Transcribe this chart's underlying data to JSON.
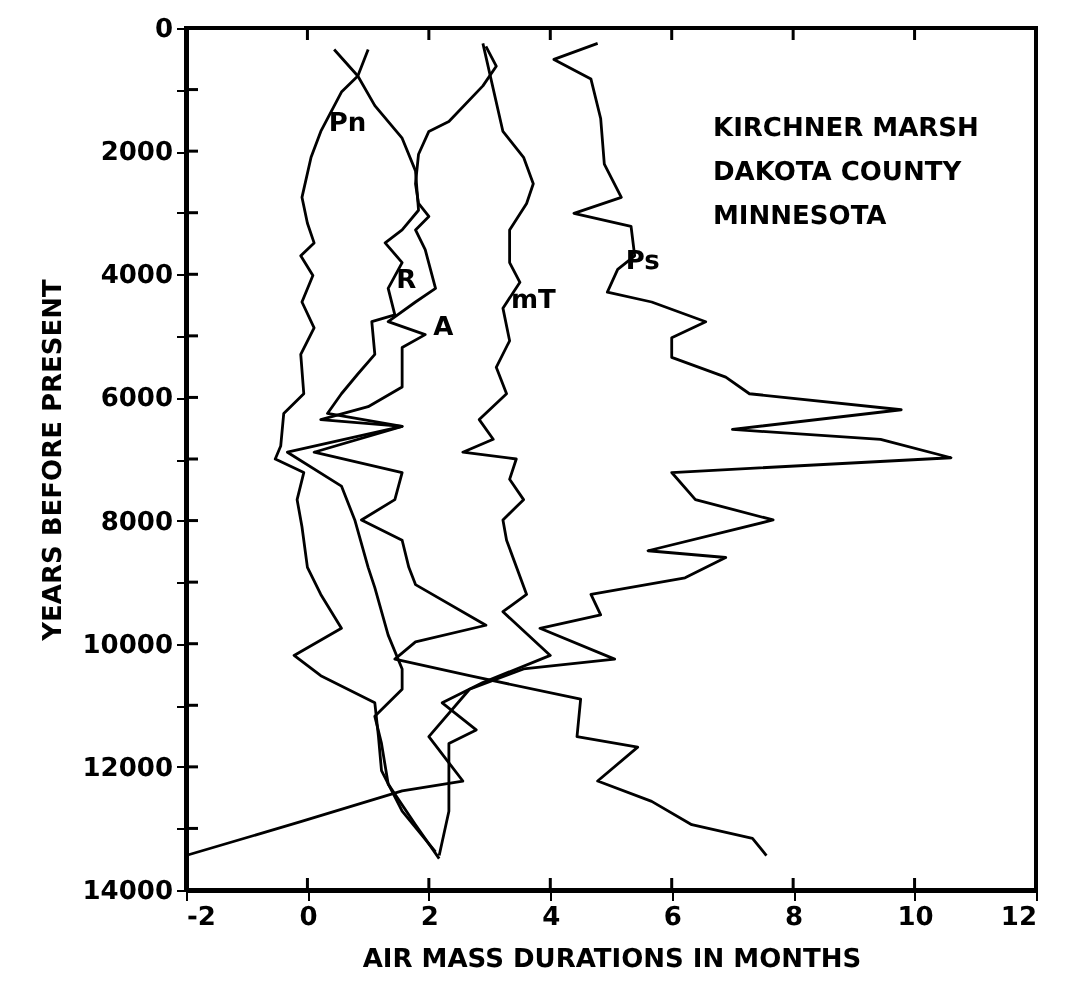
{
  "chart_data": {
    "type": "line",
    "xlabel": "AIR MASS DURATIONS IN MONTHS",
    "ylabel": "YEARS BEFORE PRESENT",
    "xlim": [
      -2,
      12
    ],
    "xticks": [
      -2,
      0,
      2,
      4,
      6,
      8,
      10,
      12
    ],
    "ylim": [
      14000,
      0
    ],
    "yticks": [
      0,
      {
        "value": 1000,
        "label": null
      },
      2000,
      {
        "value": 3000,
        "label": null
      },
      4000,
      {
        "value": 5000,
        "label": null
      },
      6000,
      {
        "value": 7000,
        "label": null
      },
      8000,
      {
        "value": 9000,
        "label": null
      },
      10000,
      {
        "value": 11000,
        "label": null
      },
      12000,
      {
        "value": 13000,
        "label": null
      },
      14000
    ],
    "grid": false,
    "marker": "none",
    "line_style": "solid",
    "series": [
      {
        "name": "Pn",
        "color": "#000000",
        "x": [
          0.44,
          0.83,
          0.56,
          0.22,
          0.06,
          -0.09,
          0,
          0.11,
          -0.11,
          0.09,
          -0.09,
          0.11,
          -0.11,
          -0.06,
          -0.39,
          -0.44,
          -0.53,
          -0.06,
          -0.17,
          -0.09,
          0,
          0.22,
          0.56,
          -0.22,
          0.22,
          1.11,
          1.17,
          1.22,
          1.56,
          2.11
        ],
        "values": [
          350,
          780,
          1040,
          1680,
          2100,
          2750,
          3170,
          3490,
          3700,
          4020,
          4450,
          4870,
          5300,
          5940,
          6260,
          6790,
          7000,
          7220,
          7660,
          8100,
          8760,
          9200,
          9750,
          10190,
          10520,
          10960,
          11510,
          12060,
          12720,
          13380
        ]
      },
      {
        "name": "R",
        "color": "#000000",
        "x": [
          1.0,
          0.83,
          1.11,
          1.56,
          1.78,
          1.83,
          1.56,
          1.28,
          1.56,
          1.33,
          1.44,
          1.06,
          1.11,
          0.83,
          0.56,
          0.33,
          1.56,
          -0.33,
          0.56,
          0.78,
          1.0,
          1.11,
          1.33,
          1.56,
          1.56,
          1.11,
          1.22,
          1.33,
          1.78,
          2.17
        ],
        "values": [
          350,
          780,
          1260,
          1790,
          2320,
          2960,
          3280,
          3490,
          3810,
          4230,
          4660,
          4770,
          5300,
          5620,
          5940,
          6260,
          6470,
          6890,
          7440,
          7990,
          8760,
          9090,
          9860,
          10410,
          10740,
          11180,
          11620,
          12280,
          12940,
          13490
        ]
      },
      {
        "name": "A",
        "color": "#000000",
        "x": [
          2.94,
          3.11,
          2.89,
          2.33,
          2.0,
          1.83,
          1.78,
          1.83,
          2.0,
          1.78,
          1.94,
          2.11,
          1.78,
          1.33,
          1.94,
          1.56,
          1.56,
          1.0,
          0.22,
          1.56,
          0.11,
          1.56,
          1.44,
          0.89,
          1.56,
          1.67,
          1.78,
          2.94,
          1.78,
          1.44,
          2.67,
          4.5,
          4.44,
          5.44,
          4.78,
          5.67,
          6.33,
          7.33,
          7.56
        ],
        "values": [
          300,
          620,
          940,
          1520,
          1680,
          2050,
          2530,
          2850,
          3060,
          3280,
          3600,
          4230,
          4450,
          4770,
          4980,
          5190,
          5830,
          6150,
          6360,
          6470,
          6890,
          7220,
          7660,
          7990,
          8320,
          8760,
          9040,
          9700,
          9970,
          10250,
          10520,
          10900,
          11510,
          11680,
          12230,
          12560,
          12940,
          13160,
          13440
        ]
      },
      {
        "name": "mT",
        "color": "#000000",
        "x": [
          2.89,
          3.22,
          3.56,
          3.72,
          3.61,
          3.33,
          3.33,
          3.5,
          3.22,
          3.33,
          3.11,
          3.28,
          2.83,
          3.06,
          2.56,
          3.44,
          3.33,
          3.56,
          3.22,
          3.28,
          3.61,
          3.22,
          4.0,
          2.89,
          2.22,
          2.78,
          2.33,
          2.33,
          2.17
        ],
        "values": [
          250,
          1680,
          2100,
          2530,
          2850,
          3280,
          3810,
          4130,
          4550,
          5080,
          5510,
          5940,
          6360,
          6680,
          6890,
          7000,
          7330,
          7660,
          7990,
          8320,
          9200,
          9480,
          10190,
          10630,
          10960,
          11400,
          11620,
          12720,
          13440
        ]
      },
      {
        "name": "Ps",
        "color": "#000000",
        "x": [
          4.78,
          4.06,
          4.67,
          4.83,
          4.89,
          5.17,
          4.39,
          5.33,
          5.39,
          5.11,
          4.94,
          5.67,
          6.56,
          6.0,
          6.0,
          6.89,
          7.28,
          9.78,
          7.0,
          9.44,
          10.6,
          6.0,
          6.39,
          7.67,
          5.61,
          6.89,
          6.22,
          4.67,
          4.83,
          3.83,
          5.06,
          3.56,
          2.67,
          2.0,
          2.56,
          1.56,
          -0.11,
          -2.0
        ],
        "values": [
          250,
          510,
          830,
          1470,
          2210,
          2750,
          3010,
          3220,
          3700,
          3920,
          4290,
          4450,
          4770,
          5030,
          5350,
          5670,
          5940,
          6200,
          6520,
          6680,
          6980,
          7220,
          7660,
          7990,
          8490,
          8600,
          8930,
          9200,
          9530,
          9750,
          10250,
          10410,
          10740,
          11510,
          12230,
          12390,
          12890,
          13440
        ]
      }
    ],
    "annotations": [
      "KIRCHNER MARSH",
      "DAKOTA COUNTY",
      "MINNESOTA"
    ]
  }
}
